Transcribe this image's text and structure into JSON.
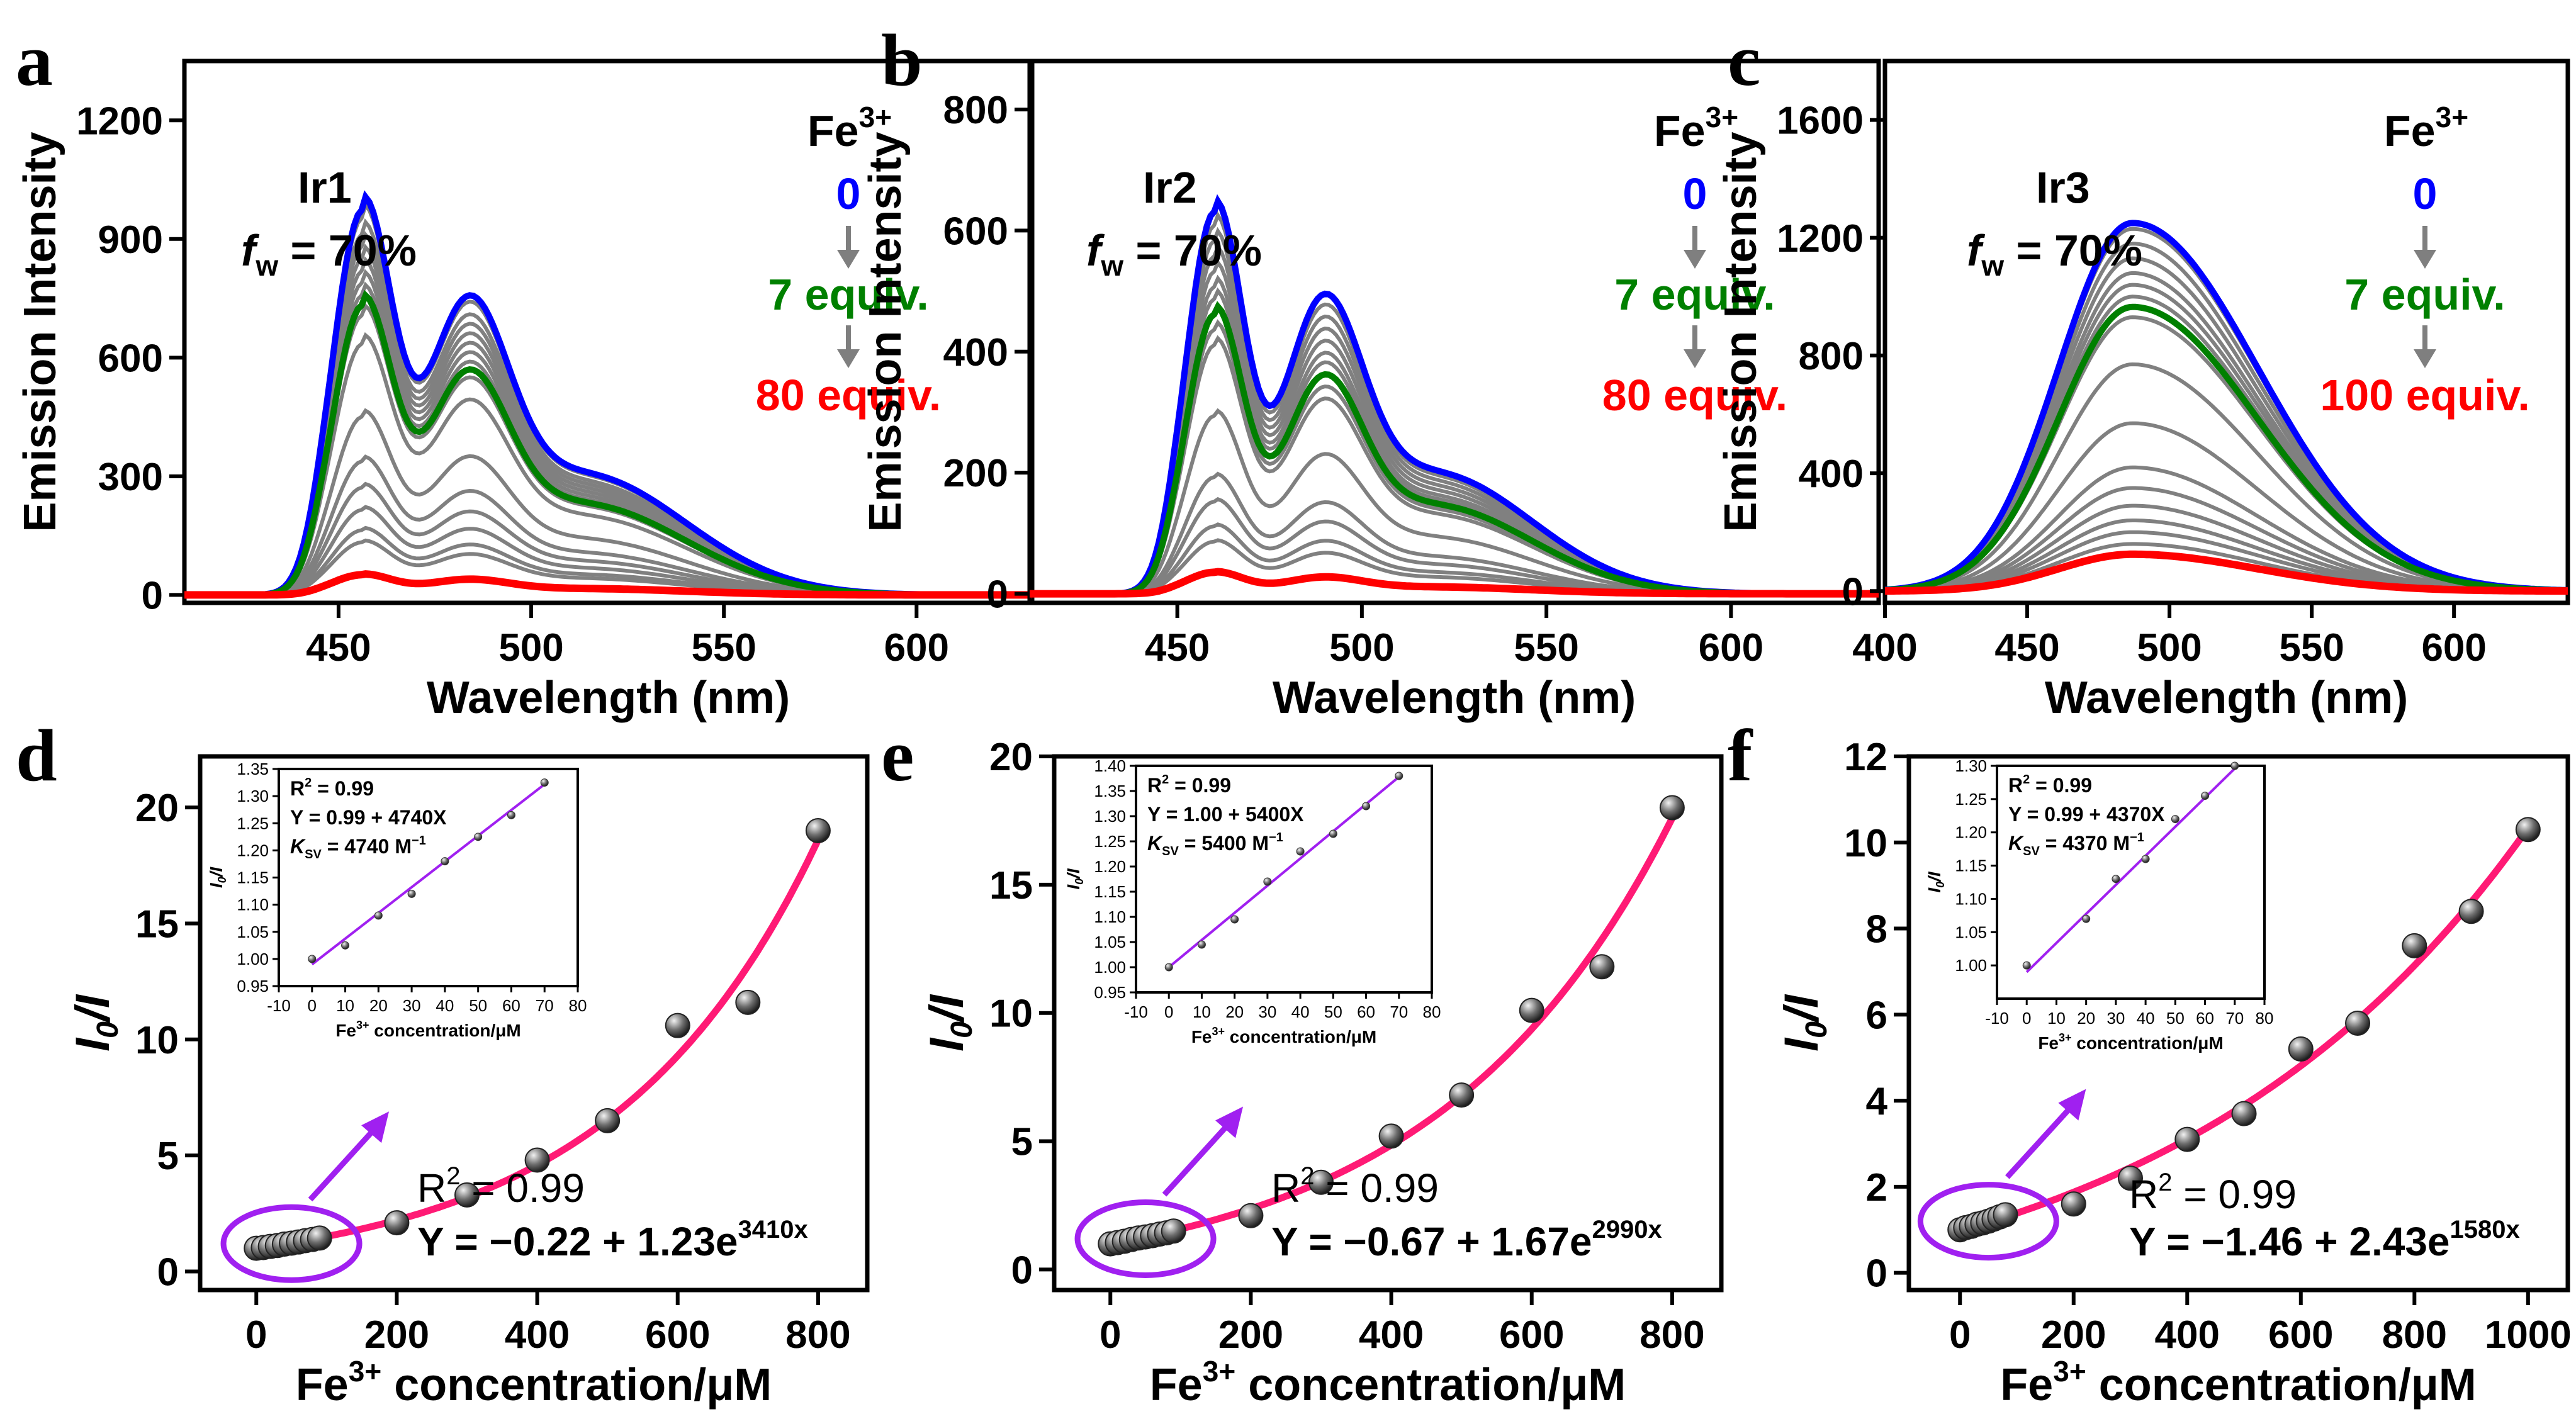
{
  "figure": {
    "panel_letters": [
      "a",
      "b",
      "c",
      "d",
      "e",
      "f"
    ],
    "arrow_color": "#7f7f7f",
    "inset_arrow_color": "#a020f0"
  },
  "chart_data": [
    {
      "type": "line",
      "letter": "a",
      "title": "Ir1",
      "fw": "70%",
      "xlabel": "Wavelength (nm)",
      "ylabel": "Emission Intensity",
      "xlim": [
        410,
        630
      ],
      "ylim": [
        -20,
        1350
      ],
      "xticks": [
        450,
        500,
        550,
        600
      ],
      "yticks": [
        0,
        300,
        600,
        900,
        1200
      ],
      "peak1": 456,
      "peak2": 483,
      "legend": {
        "label": "Fe",
        "sup": "3+",
        "start": "0",
        "mid": "7 equiv.",
        "end": "80 equiv."
      },
      "colors": {
        "start": "#0000ff",
        "mid": "#008000",
        "end": "#ff0000",
        "other": "#808080"
      },
      "series": [
        {
          "name": "0",
          "color": "blue",
          "peak": 950
        },
        {
          "name": "",
          "color": "gray",
          "peak": 930
        },
        {
          "name": "",
          "color": "gray",
          "peak": 890
        },
        {
          "name": "",
          "color": "gray",
          "peak": 860
        },
        {
          "name": "",
          "color": "gray",
          "peak": 830
        },
        {
          "name": "",
          "color": "gray",
          "peak": 800
        },
        {
          "name": "",
          "color": "gray",
          "peak": 770
        },
        {
          "name": "",
          "color": "gray",
          "peak": 740
        },
        {
          "name": "7 equiv.",
          "color": "green",
          "peak": 715
        },
        {
          "name": "",
          "color": "gray",
          "peak": 690
        },
        {
          "name": "",
          "color": "gray",
          "peak": 620
        },
        {
          "name": "",
          "color": "gray",
          "peak": 440
        },
        {
          "name": "",
          "color": "gray",
          "peak": 330
        },
        {
          "name": "",
          "color": "gray",
          "peak": 265
        },
        {
          "name": "",
          "color": "gray",
          "peak": 210
        },
        {
          "name": "",
          "color": "gray",
          "peak": 160
        },
        {
          "name": "",
          "color": "gray",
          "peak": 130
        },
        {
          "name": "80 equiv.",
          "color": "red",
          "peak": 50
        }
      ]
    },
    {
      "type": "line",
      "letter": "b",
      "title": "Ir2",
      "fw": "70%",
      "xlabel": "Wavelength (nm)",
      "ylabel": "Emission Intensity",
      "xlim": [
        410,
        640
      ],
      "ylim": [
        -15,
        880
      ],
      "xticks": [
        450,
        500,
        550,
        600
      ],
      "yticks": [
        0,
        200,
        400,
        600,
        800
      ],
      "peak1": 460,
      "peak2": 489,
      "legend": {
        "label": "Fe",
        "sup": "3+",
        "start": "0",
        "mid": "7 equiv.",
        "end": "80 equiv."
      },
      "colors": {
        "start": "#0000ff",
        "mid": "#008000",
        "end": "#ff0000",
        "other": "#808080"
      },
      "series": [
        {
          "name": "0",
          "color": "blue",
          "peak": 622
        },
        {
          "name": "",
          "color": "gray",
          "peak": 600
        },
        {
          "name": "",
          "color": "gray",
          "peak": 575
        },
        {
          "name": "",
          "color": "gray",
          "peak": 550
        },
        {
          "name": "",
          "color": "gray",
          "peak": 525
        },
        {
          "name": "",
          "color": "gray",
          "peak": 500
        },
        {
          "name": "",
          "color": "gray",
          "peak": 480
        },
        {
          "name": "7 equiv.",
          "color": "green",
          "peak": 455
        },
        {
          "name": "",
          "color": "gray",
          "peak": 430
        },
        {
          "name": "",
          "color": "gray",
          "peak": 405
        },
        {
          "name": "",
          "color": "gray",
          "peak": 290
        },
        {
          "name": "",
          "color": "gray",
          "peak": 190
        },
        {
          "name": "",
          "color": "gray",
          "peak": 150
        },
        {
          "name": "",
          "color": "gray",
          "peak": 110
        },
        {
          "name": "",
          "color": "gray",
          "peak": 85
        },
        {
          "name": "80 equiv.",
          "color": "red",
          "peak": 35
        }
      ]
    },
    {
      "type": "line",
      "letter": "c",
      "title": "Ir3",
      "fw": "70%",
      "xlabel": "Wavelength (nm)",
      "ylabel": "Emission Intensity",
      "xlim": [
        400,
        640
      ],
      "ylim": [
        -40,
        1800
      ],
      "xticks": [
        400,
        450,
        500,
        550,
        600
      ],
      "yticks": [
        0,
        400,
        800,
        1200,
        1600
      ],
      "peak1": 487,
      "peak2": 0,
      "legend": {
        "label": "Fe",
        "sup": "3+",
        "start": "0",
        "mid": "7 equiv.",
        "end": "100 equiv."
      },
      "colors": {
        "start": "#0000ff",
        "mid": "#008000",
        "end": "#ff0000",
        "other": "#808080"
      },
      "series": [
        {
          "name": "0",
          "color": "blue",
          "peak": 1250
        },
        {
          "name": "",
          "color": "gray",
          "peak": 1230
        },
        {
          "name": "",
          "color": "gray",
          "peak": 1180
        },
        {
          "name": "",
          "color": "gray",
          "peak": 1130
        },
        {
          "name": "",
          "color": "gray",
          "peak": 1080
        },
        {
          "name": "",
          "color": "gray",
          "peak": 1040
        },
        {
          "name": "",
          "color": "gray",
          "peak": 1000
        },
        {
          "name": "7 equiv.",
          "color": "green",
          "peak": 965
        },
        {
          "name": "",
          "color": "gray",
          "peak": 930
        },
        {
          "name": "",
          "color": "gray",
          "peak": 770
        },
        {
          "name": "",
          "color": "gray",
          "peak": 570
        },
        {
          "name": "",
          "color": "gray",
          "peak": 420
        },
        {
          "name": "",
          "color": "gray",
          "peak": 350
        },
        {
          "name": "",
          "color": "gray",
          "peak": 290
        },
        {
          "name": "",
          "color": "gray",
          "peak": 240
        },
        {
          "name": "",
          "color": "gray",
          "peak": 200
        },
        {
          "name": "",
          "color": "gray",
          "peak": 160
        },
        {
          "name": "100 equiv.",
          "color": "red",
          "peak": 125
        }
      ]
    },
    {
      "type": "scatter",
      "letter": "d",
      "xlabel": "Fe concentration/μM",
      "xlabel_pre": "Fe",
      "xlabel_sup": "3+",
      "xlabel_post": " concentration/μM",
      "ylabel": "I0/I",
      "xlim": [
        -80,
        870
      ],
      "ylim": [
        -0.8,
        22.2
      ],
      "xticks": [
        0,
        200,
        400,
        600,
        800
      ],
      "yticks": [
        0,
        5,
        10,
        15,
        20
      ],
      "points": {
        "x": [
          0,
          10,
          20,
          30,
          40,
          50,
          60,
          70,
          80,
          90,
          200,
          300,
          400,
          500,
          600,
          700,
          800
        ],
        "y": [
          1.0,
          1.03,
          1.08,
          1.12,
          1.18,
          1.22,
          1.27,
          1.33,
          1.38,
          1.44,
          2.1,
          3.3,
          4.8,
          6.5,
          10.6,
          11.6,
          19.0
        ]
      },
      "fit": {
        "a": -0.22,
        "b": 1.23,
        "k": 0.00341
      },
      "fit_r2": "R",
      "fit_r2_sup": "2",
      "fit_r2_post": " = 0.99",
      "fit_eq": "Y = −0.22 + 1.23e",
      "fit_eq_sup": "3410x",
      "inset": {
        "xlim": [
          -10,
          80
        ],
        "ylim": [
          0.95,
          1.35
        ],
        "xticks": [
          -10,
          0,
          10,
          20,
          30,
          40,
          50,
          60,
          70,
          80
        ],
        "yticks": [
          0.95,
          1.0,
          1.05,
          1.1,
          1.15,
          1.2,
          1.25,
          1.3,
          1.35
        ],
        "x": [
          0,
          10,
          20,
          30,
          40,
          50,
          60,
          70
        ],
        "y": [
          1.0,
          1.025,
          1.08,
          1.12,
          1.18,
          1.225,
          1.265,
          1.325
        ],
        "line": {
          "intercept": 0.99,
          "slope": 0.00474
        },
        "r2": "R",
        "r2_sup": "2",
        "r2_post": " = 0.99",
        "eq": "Y = 0.99 + 4740X",
        "k": "K",
        "k_sub": "SV",
        "k_post": " = 4740 M",
        "k_sup": "−1",
        "xlabel_pre": "Fe",
        "xlabel_sup": "3+",
        "xlabel_post": " concentration/μM",
        "ylabel": "I0/I"
      }
    },
    {
      "type": "scatter",
      "letter": "e",
      "xlabel": "Fe concentration/μM",
      "xlabel_pre": "Fe",
      "xlabel_sup": "3+",
      "xlabel_post": " concentration/μM",
      "ylabel": "I0/I",
      "xlim": [
        -80,
        870
      ],
      "ylim": [
        -0.8,
        20.0
      ],
      "xticks": [
        0,
        200,
        400,
        600,
        800
      ],
      "yticks": [
        0,
        5,
        10,
        15,
        20
      ],
      "points": {
        "x": [
          0,
          10,
          20,
          30,
          40,
          50,
          60,
          70,
          80,
          90,
          200,
          300,
          400,
          500,
          600,
          700,
          800
        ],
        "y": [
          1.0,
          1.05,
          1.1,
          1.17,
          1.23,
          1.27,
          1.32,
          1.38,
          1.43,
          1.5,
          2.1,
          3.4,
          5.2,
          6.8,
          10.1,
          11.8,
          18.0
        ]
      },
      "fit": {
        "a": -0.67,
        "b": 1.67,
        "k": 0.00299
      },
      "fit_r2": "R",
      "fit_r2_sup": "2",
      "fit_r2_post": " = 0.99",
      "fit_eq": "Y = −0.67 + 1.67e",
      "fit_eq_sup": "2990x",
      "inset": {
        "xlim": [
          -10,
          80
        ],
        "ylim": [
          0.95,
          1.4
        ],
        "xticks": [
          -10,
          0,
          10,
          20,
          30,
          40,
          50,
          60,
          70,
          80
        ],
        "yticks": [
          0.95,
          1.0,
          1.05,
          1.1,
          1.15,
          1.2,
          1.25,
          1.3,
          1.35,
          1.4
        ],
        "x": [
          0,
          10,
          20,
          30,
          40,
          50,
          60,
          70
        ],
        "y": [
          1.0,
          1.045,
          1.095,
          1.17,
          1.23,
          1.265,
          1.32,
          1.38
        ],
        "line": {
          "intercept": 1.0,
          "slope": 0.0054
        },
        "r2": "R",
        "r2_sup": "2",
        "r2_post": " = 0.99",
        "eq": "Y = 1.00 + 5400X",
        "k": "K",
        "k_sub": "SV",
        "k_post": " = 5400 M",
        "k_sup": "−1",
        "xlabel_pre": "Fe",
        "xlabel_sup": "3+",
        "xlabel_post": " concentration/μM",
        "ylabel": "I0/I"
      }
    },
    {
      "type": "scatter",
      "letter": "f",
      "xlabel": "Fe concentration/μM",
      "xlabel_pre": "Fe",
      "xlabel_sup": "3+",
      "xlabel_post": " concentration/μM",
      "ylabel": "I0/I",
      "xlim": [
        -90,
        1070
      ],
      "ylim": [
        -0.4,
        12.0
      ],
      "xticks": [
        0,
        200,
        400,
        600,
        800,
        1000
      ],
      "yticks": [
        0,
        2,
        4,
        6,
        8,
        10,
        12
      ],
      "points": {
        "x": [
          0,
          10,
          20,
          30,
          40,
          50,
          60,
          70,
          80,
          200,
          300,
          400,
          500,
          600,
          700,
          800,
          900,
          1000
        ],
        "y": [
          1.0,
          1.05,
          1.08,
          1.13,
          1.16,
          1.2,
          1.25,
          1.3,
          1.35,
          1.6,
          2.2,
          3.1,
          3.7,
          5.2,
          5.8,
          7.6,
          8.4,
          10.3
        ]
      },
      "fit": {
        "a": -1.46,
        "b": 2.43,
        "k": 0.00158
      },
      "fit_r2": "R",
      "fit_r2_sup": "2",
      "fit_r2_post": " = 0.99",
      "fit_eq": "Y = −1.46  + 2.43e",
      "fit_eq_sup": "1580x",
      "inset": {
        "xlim": [
          -10,
          80
        ],
        "ylim": [
          0.95,
          1.3
        ],
        "xticks": [
          -10,
          0,
          10,
          20,
          30,
          40,
          50,
          60,
          70,
          80
        ],
        "yticks": [
          1.0,
          1.05,
          1.1,
          1.15,
          1.2,
          1.25,
          1.3
        ],
        "x": [
          0,
          20,
          30,
          40,
          50,
          60,
          70
        ],
        "y": [
          1.0,
          1.07,
          1.13,
          1.16,
          1.22,
          1.255,
          1.3
        ],
        "line": {
          "intercept": 0.99,
          "slope": 0.00437
        },
        "r2": "R",
        "r2_sup": "2",
        "r2_post": " = 0.99",
        "eq": "Y = 0.99 + 4370X",
        "k": "K",
        "k_sub": "SV",
        "k_post": " = 4370 M",
        "k_sup": "−1",
        "xlabel_pre": "Fe",
        "xlabel_sup": "3+",
        "xlabel_post": " concentration/μM",
        "ylabel": "I0/I"
      }
    }
  ]
}
